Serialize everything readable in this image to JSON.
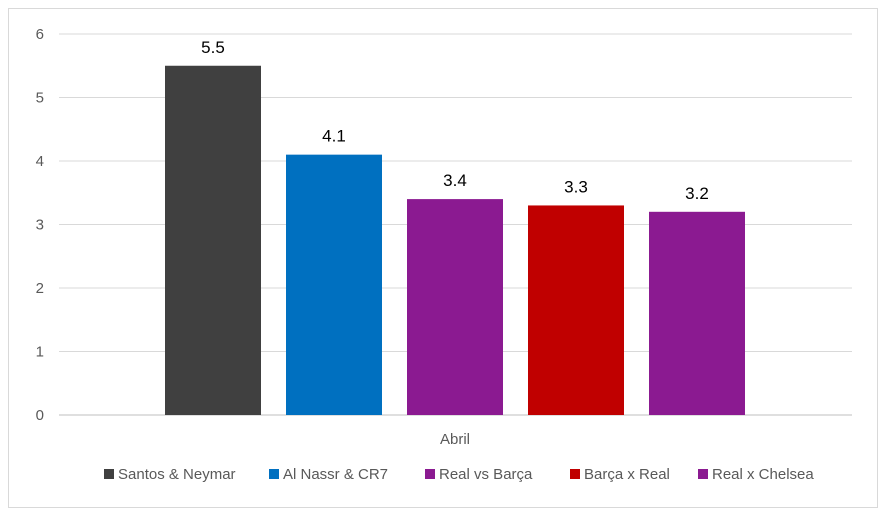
{
  "chart_data": {
    "type": "bar",
    "categories": [
      "Abril"
    ],
    "series": [
      {
        "name": "Santos & Neymar",
        "values": [
          5.5
        ],
        "color": "#404040"
      },
      {
        "name": "Al Nassr & CR7",
        "values": [
          4.1
        ],
        "color": "#0070c0"
      },
      {
        "name": "Real vs Barça",
        "values": [
          3.4
        ],
        "color": "#8b1a91"
      },
      {
        "name": "Barça x Real",
        "values": [
          3.3
        ],
        "color": "#c00000"
      },
      {
        "name": "Real x Chelsea",
        "values": [
          3.2
        ],
        "color": "#8b1a91"
      }
    ],
    "data_labels": [
      "5.5",
      "4.1",
      "3.4",
      "3.3",
      "3.2"
    ],
    "y_ticks": [
      "0",
      "1",
      "2",
      "3",
      "4",
      "5",
      "6"
    ],
    "ylim": [
      0,
      6
    ],
    "grid": true,
    "legend_position": "bottom",
    "title": "",
    "xlabel": "",
    "ylabel": ""
  }
}
